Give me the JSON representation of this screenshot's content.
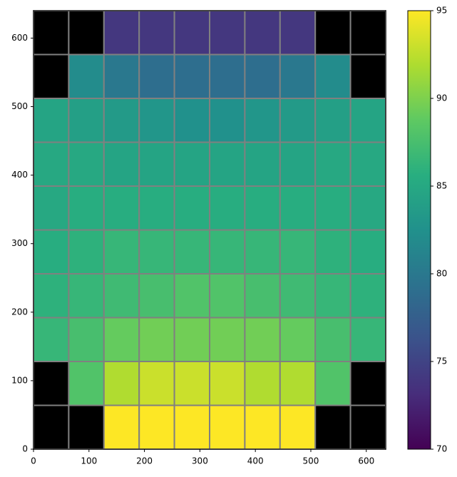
{
  "chart_data": {
    "type": "heatmap",
    "xlim": [
      0,
      635
    ],
    "ylim": [
      0,
      640
    ],
    "xticks": [
      0,
      100,
      200,
      300,
      400,
      500,
      600
    ],
    "yticks": [
      0,
      100,
      200,
      300,
      400,
      500,
      600
    ],
    "colormap": "viridis",
    "missing_color": "#000000",
    "edgecolor": "#808080",
    "clim": [
      70,
      95
    ],
    "cticks": [
      70,
      75,
      80,
      85,
      90,
      95
    ],
    "z": [
      [
        null,
        null,
        95,
        95,
        95,
        95,
        95,
        95,
        null,
        null
      ],
      [
        null,
        88,
        92,
        93,
        93,
        93,
        92,
        92,
        88,
        null
      ],
      [
        86.5,
        87.5,
        89,
        89.5,
        89.5,
        89.5,
        89.5,
        89,
        87.5,
        86.5
      ],
      [
        86,
        86.5,
        87,
        87.5,
        88,
        88,
        87.5,
        87,
        86.5,
        86
      ],
      [
        85.5,
        86,
        86.5,
        86.5,
        86.5,
        86.5,
        86.5,
        86.5,
        86,
        85.5
      ],
      [
        85,
        85.5,
        85.5,
        85.5,
        85.5,
        85.5,
        85.5,
        85.5,
        85.5,
        85
      ],
      [
        85,
        85,
        84.5,
        84.5,
        84.5,
        84.5,
        84.5,
        84.5,
        85,
        85
      ],
      [
        84.5,
        84,
        83.5,
        83,
        82.5,
        82.5,
        83,
        83.5,
        84,
        84.5
      ],
      [
        null,
        82,
        80,
        79,
        79,
        79,
        79,
        80,
        82,
        null
      ],
      [
        null,
        null,
        74,
        74,
        74,
        74,
        74,
        74,
        null,
        null
      ]
    ]
  }
}
